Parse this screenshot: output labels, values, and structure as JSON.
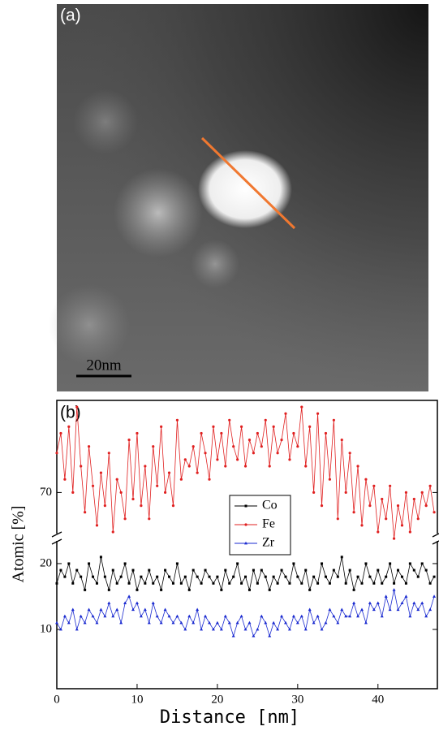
{
  "image": {
    "label": "(a)",
    "scale_bar": "20nm"
  },
  "chart_data": {
    "type": "line",
    "label": "(b)",
    "x_label": "Distance [nm]",
    "y_label": "Atomic [%]",
    "xlim": [
      0,
      47.5
    ],
    "xticks": [
      0,
      10,
      20,
      30,
      40
    ],
    "segments": [
      {
        "ylim": [
          1,
          23.2
        ],
        "yticks": [
          10,
          20
        ]
      },
      {
        "ylim": [
          64,
          84
        ],
        "yticks": [
          70
        ]
      }
    ],
    "x": [
      0,
      0.5,
      1,
      1.5,
      2,
      2.5,
      3,
      3.5,
      4,
      4.5,
      5,
      5.5,
      6,
      6.5,
      7,
      7.5,
      8,
      8.5,
      9,
      9.5,
      10,
      10.5,
      11,
      11.5,
      12,
      12.5,
      13,
      13.5,
      14,
      14.5,
      15,
      15.5,
      16,
      16.5,
      17,
      17.5,
      18,
      18.5,
      19,
      19.5,
      20,
      20.5,
      21,
      21.5,
      22,
      22.5,
      23,
      23.5,
      24,
      24.5,
      25,
      25.5,
      26,
      26.5,
      27,
      27.5,
      28,
      28.5,
      29,
      29.5,
      30,
      30.5,
      31,
      31.5,
      32,
      32.5,
      33,
      33.5,
      34,
      34.5,
      35,
      35.5,
      36,
      36.5,
      37,
      37.5,
      38,
      38.5,
      39,
      39.5,
      40,
      40.5,
      41,
      41.5,
      42,
      42.5,
      43,
      43.5,
      44,
      44.5,
      45,
      45.5,
      46,
      46.5,
      47
    ],
    "series": [
      {
        "name": "Co",
        "color": "#000000",
        "marker": "square",
        "segment": 0,
        "values": [
          17,
          19,
          18,
          20,
          17,
          19,
          18,
          16,
          20,
          18,
          17,
          21,
          18,
          16,
          19,
          17,
          18,
          20,
          17,
          19,
          16,
          18,
          17,
          19,
          17,
          18,
          16,
          19,
          18,
          17,
          20,
          17,
          18,
          16,
          19,
          18,
          17,
          19,
          18,
          17,
          18,
          16,
          19,
          17,
          18,
          20,
          17,
          18,
          16,
          19,
          17,
          19,
          18,
          16,
          18,
          17,
          19,
          18,
          17,
          20,
          18,
          17,
          19,
          16,
          18,
          17,
          20,
          18,
          17,
          19,
          18,
          21,
          17,
          19,
          16,
          18,
          17,
          20,
          18,
          17,
          19,
          17,
          18,
          20,
          17,
          19,
          18,
          17,
          20,
          19,
          18,
          20,
          19,
          17,
          18
        ]
      },
      {
        "name": "Fe",
        "color": "#e02020",
        "marker": "circle",
        "segment": 1,
        "values": [
          76,
          79,
          72,
          80,
          70,
          83,
          74,
          67,
          77,
          71,
          65,
          73,
          68,
          76,
          64,
          72,
          70,
          66,
          78,
          69,
          79,
          68,
          74,
          66,
          77,
          71,
          80,
          70,
          73,
          68,
          81,
          72,
          75,
          74,
          77,
          73,
          79,
          76,
          72,
          80,
          75,
          79,
          74,
          81,
          77,
          75,
          80,
          74,
          78,
          76,
          79,
          77,
          81,
          74,
          80,
          76,
          78,
          82,
          75,
          79,
          77,
          83,
          74,
          80,
          70,
          82,
          68,
          79,
          72,
          81,
          66,
          78,
          70,
          76,
          67,
          74,
          65,
          72,
          68,
          71,
          64,
          69,
          66,
          71,
          63,
          68,
          65,
          70,
          64,
          69,
          66,
          70,
          68,
          71,
          67
        ]
      },
      {
        "name": "Zr",
        "color": "#1a2ad0",
        "marker": "triangle",
        "segment": 0,
        "values": [
          11,
          10,
          12,
          11,
          13,
          10,
          12,
          11,
          13,
          12,
          11,
          13,
          12,
          14,
          12,
          13,
          11,
          14,
          15,
          13,
          14,
          12,
          13,
          11,
          14,
          12,
          11,
          13,
          12,
          11,
          12,
          11,
          10,
          12,
          11,
          13,
          10,
          12,
          11,
          10,
          11,
          10,
          12,
          11,
          9,
          11,
          12,
          10,
          11,
          9,
          10,
          12,
          11,
          9,
          11,
          10,
          12,
          11,
          10,
          12,
          11,
          12,
          10,
          13,
          11,
          12,
          10,
          11,
          13,
          12,
          11,
          13,
          12,
          12,
          14,
          12,
          13,
          11,
          14,
          13,
          14,
          12,
          15,
          13,
          16,
          13,
          14,
          15,
          12,
          14,
          13,
          14,
          12,
          13,
          15
        ]
      }
    ]
  }
}
